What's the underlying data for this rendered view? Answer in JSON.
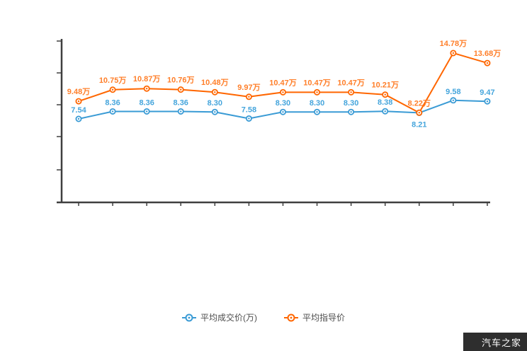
{
  "watermark": {
    "brand": "汽车之家"
  },
  "colors": {
    "axis": "#3f3f3f",
    "blue_line": "#3a9bd5",
    "blue_label": "#45a5dc",
    "orange_line": "#ff6600",
    "orange_label": "#ff7f2a",
    "legend_text": "#4d4d4d",
    "watermark_bg": "#2e2e2e"
  },
  "legend": [
    {
      "label": "平均成交价(万)",
      "color": "#3a9bd5"
    },
    {
      "label": "平均指导价",
      "color": "#ff6600"
    }
  ],
  "chart_data": {
    "type": "line",
    "title": "",
    "xlabel": "",
    "ylabel": "",
    "grid": false,
    "legend_position": "bottom",
    "x": [
      1,
      2,
      3,
      4,
      5,
      6,
      7,
      8,
      9,
      10,
      11,
      12,
      13
    ],
    "x_tick_labels": [
      "",
      "",
      "",
      "",
      "",
      "",
      "",
      "",
      "",
      "",
      "",
      "",
      ""
    ],
    "y_tick_labels": [
      "",
      "",
      "",
      "",
      "",
      ""
    ],
    "ylim_note": "y axis shows unlabeled ticks only",
    "series": [
      {
        "name": "平均成交价(万)",
        "color": "#3a9bd5",
        "values": [
          7.54,
          8.36,
          8.36,
          8.36,
          8.3,
          7.58,
          8.3,
          8.3,
          8.3,
          8.38,
          8.21,
          9.58,
          9.47
        ],
        "labels": [
          "7.54",
          "8.36",
          "8.36",
          "8.36",
          "8.30",
          "7.58",
          "8.30",
          "8.30",
          "8.30",
          "8.38",
          "8.21",
          "9.58",
          "9.47"
        ]
      },
      {
        "name": "平均指导价",
        "color": "#ff6600",
        "values": [
          9.48,
          10.75,
          10.87,
          10.76,
          10.48,
          9.97,
          10.47,
          10.47,
          10.47,
          10.21,
          8.22,
          14.78,
          13.68
        ],
        "labels": [
          "9.48万",
          "10.75万",
          "10.87万",
          "10.76万",
          "10.48万",
          "9.97万",
          "10.47万",
          "10.47万",
          "10.47万",
          "10.21万",
          "8.22万",
          "14.78万",
          "13.68万"
        ]
      }
    ]
  }
}
